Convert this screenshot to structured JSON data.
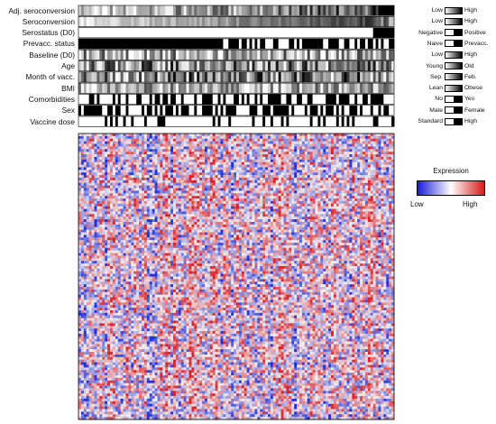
{
  "chart_data": {
    "type": "heatmap",
    "annotation_tracks": [
      {
        "name": "Adj. seroconversion",
        "low": "Low",
        "high": "High",
        "kind": "continuous"
      },
      {
        "name": "Seroconversion",
        "low": "Low",
        "high": "High",
        "kind": "continuous"
      },
      {
        "name": "Serostatus (D0)",
        "low": "Negative",
        "high": "Positive",
        "kind": "binary"
      },
      {
        "name": "Prevacc. status",
        "low": "Naive",
        "high": "Prevacc.",
        "kind": "binary"
      },
      {
        "name": "Baseline (D0)",
        "low": "Low",
        "high": "High",
        "kind": "continuous"
      },
      {
        "name": "Age",
        "low": "Young",
        "high": "Old",
        "kind": "continuous"
      },
      {
        "name": "Month of vacc.",
        "low": "Sep.",
        "high": "Feb.",
        "kind": "continuous"
      },
      {
        "name": "BMI",
        "low": "Lean",
        "high": "Obese",
        "kind": "continuous"
      },
      {
        "name": "Comorbidities",
        "low": "No",
        "high": "Yes",
        "kind": "binary"
      },
      {
        "name": "Sex",
        "low": "Male",
        "high": "Female",
        "kind": "binary"
      },
      {
        "name": "Vaccine dose",
        "low": "Standard",
        "high": "High",
        "kind": "binary"
      }
    ],
    "legend": {
      "title": "Expression",
      "low_label": "Low",
      "high_label": "High",
      "colors": [
        "#1a1ad6",
        "#ffffff",
        "#d61a1a"
      ]
    },
    "n_samples": 120,
    "n_genes": 110,
    "colors": {
      "low": "#1f2fd8",
      "mid": "#f4f2f2",
      "high": "#d8232a"
    }
  }
}
